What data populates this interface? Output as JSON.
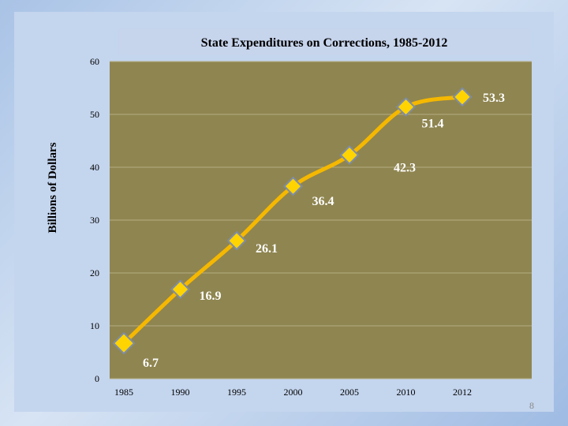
{
  "chart_data": {
    "type": "line",
    "title": "State Expenditures on Corrections, 1985-2012",
    "xlabel": "",
    "ylabel": "Billions of Dollars",
    "categories": [
      "1985",
      "1990",
      "1995",
      "2000",
      "2005",
      "2010",
      "2012"
    ],
    "series": [
      {
        "name": "State Expenditures on Corrections",
        "values": [
          6.7,
          16.9,
          26.1,
          36.4,
          42.3,
          51.4,
          53.3
        ]
      }
    ],
    "data_labels": [
      "6.7",
      "16.9",
      "26.1",
      "36.4",
      "42.3",
      "51.4",
      "53.3"
    ],
    "ylim": [
      0,
      60
    ],
    "yticks": [
      0,
      10,
      20,
      30,
      40,
      50,
      60
    ],
    "grid": true,
    "legend": "none"
  },
  "slide": {
    "page_number": "8"
  },
  "colors": {
    "plot_bg": "#8f8550",
    "grid": "#b5ad84",
    "line": "#f5b800",
    "marker": "#ffd400",
    "marker_border": "#7f8da6",
    "title_box": "#c6d4ec"
  }
}
